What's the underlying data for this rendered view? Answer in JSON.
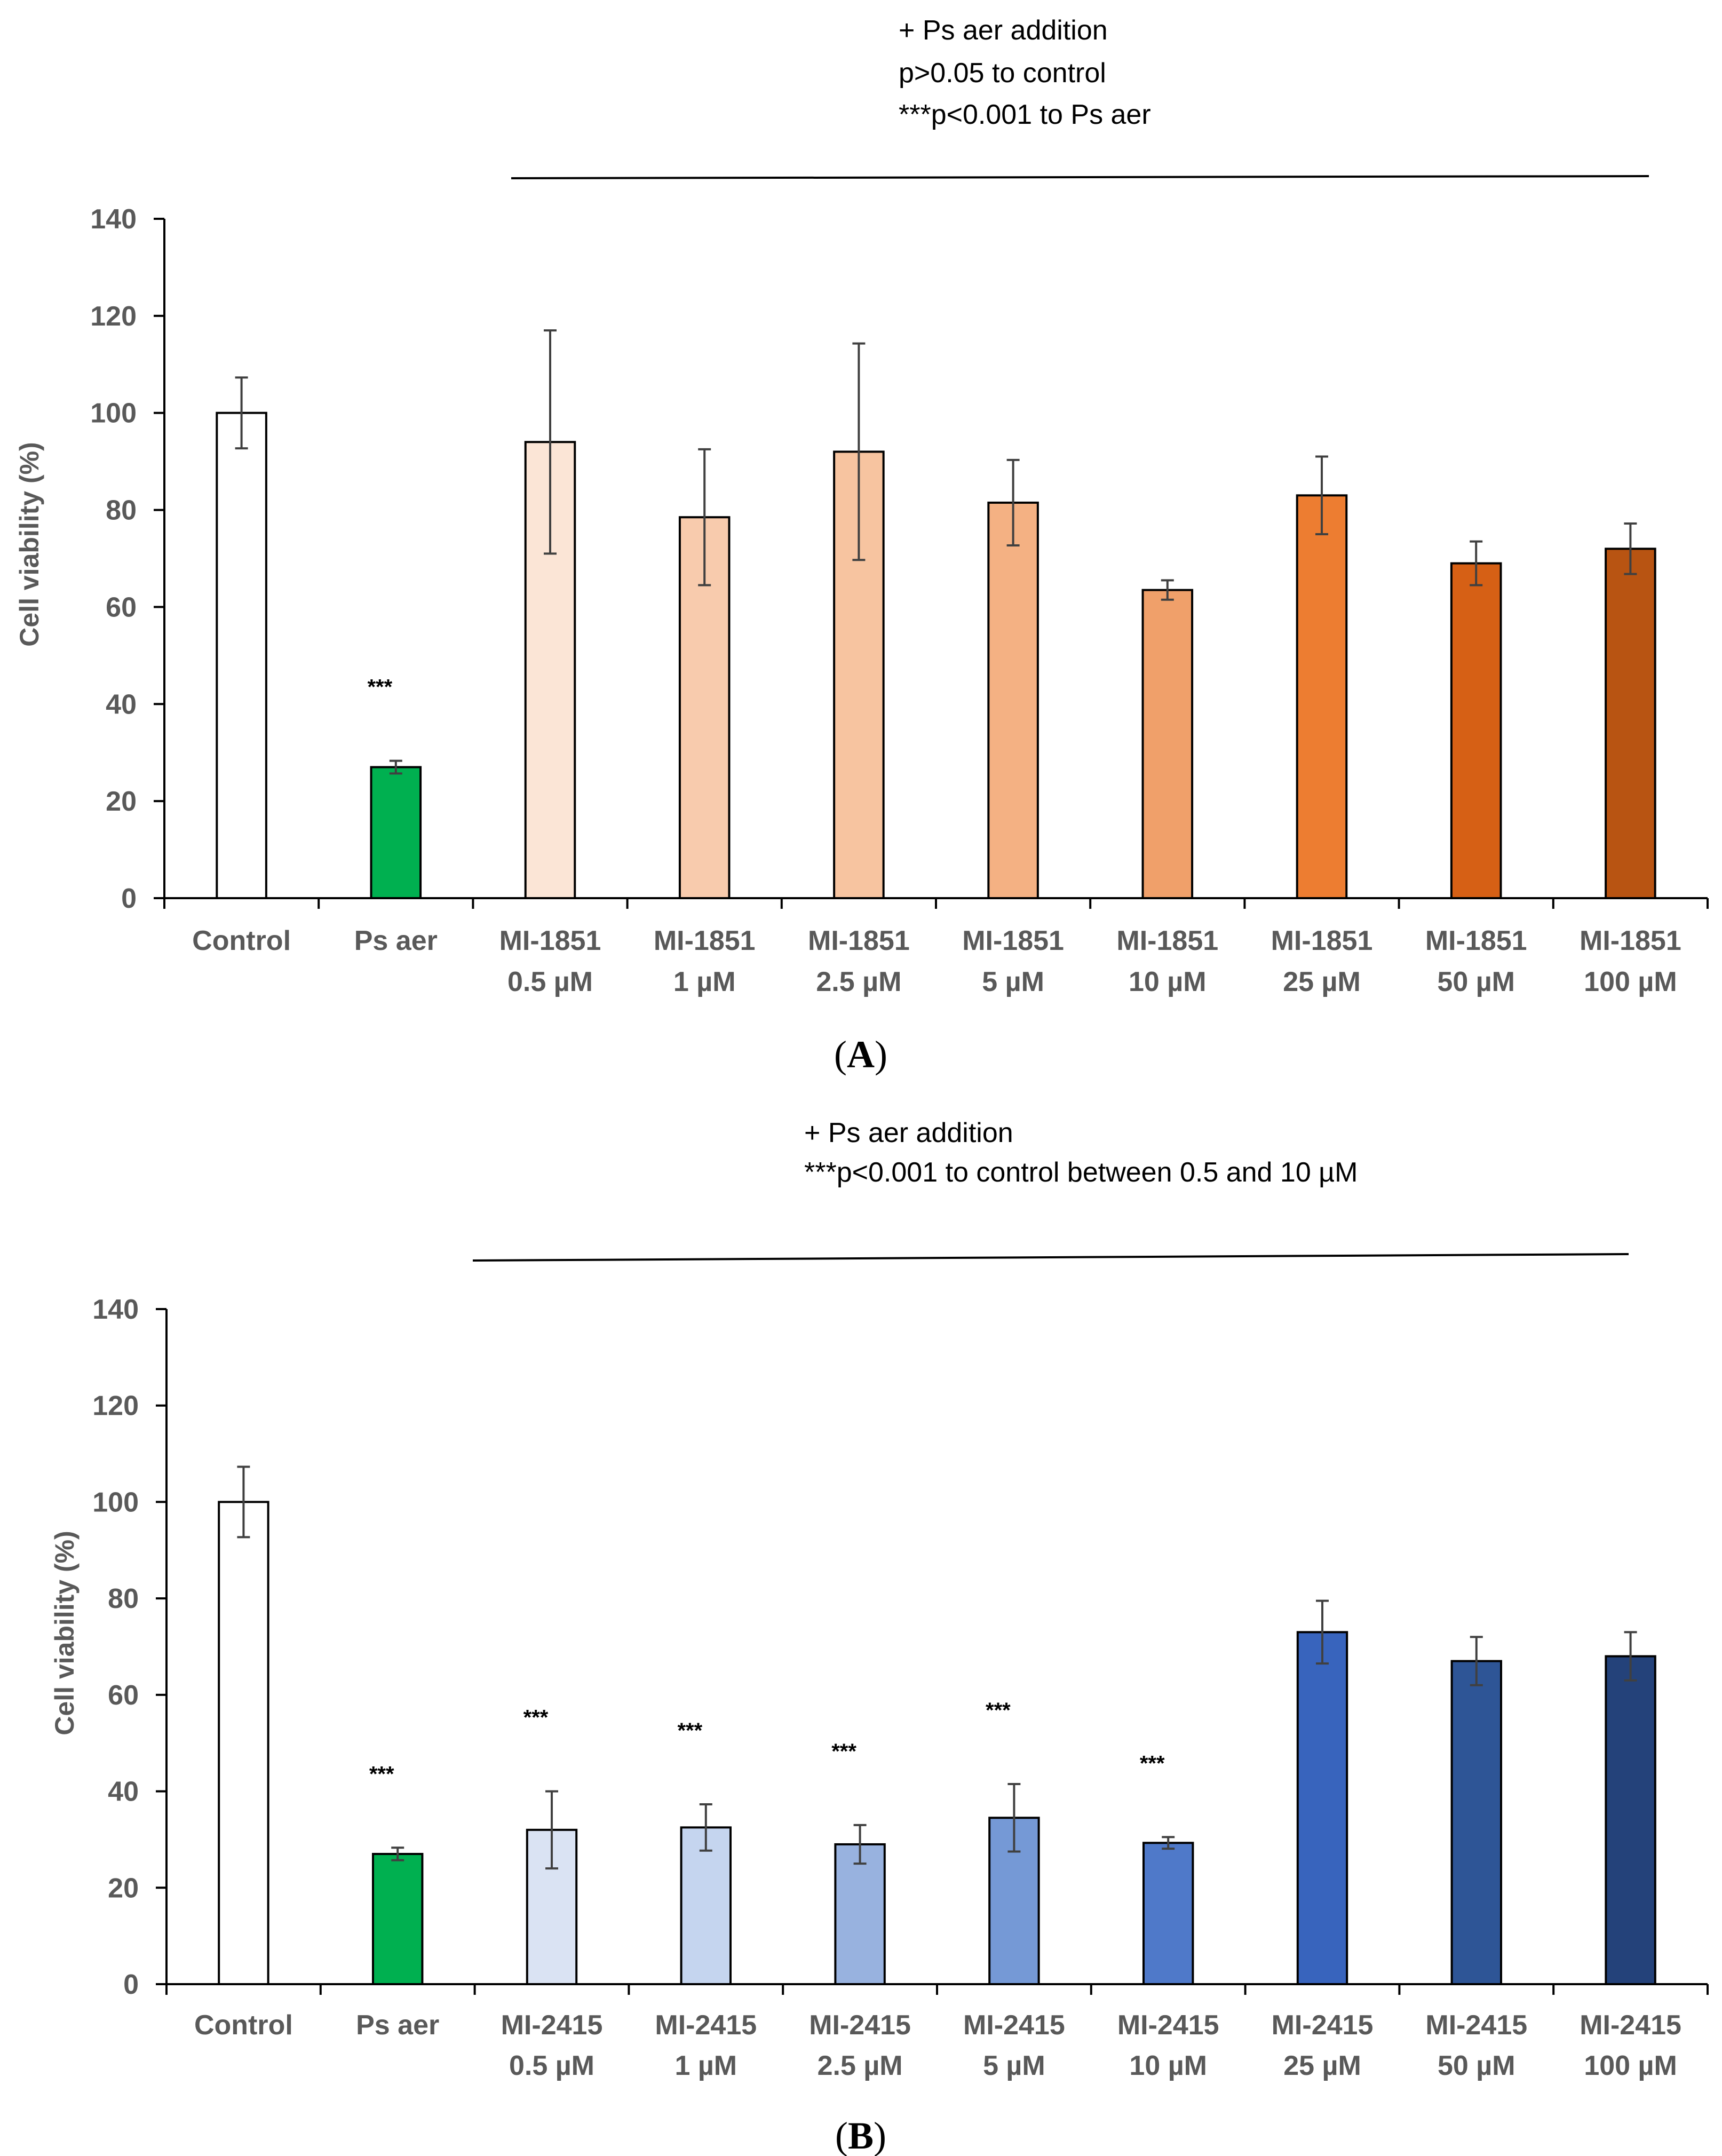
{
  "chart_data": [
    {
      "type": "bar",
      "panel": "A",
      "ylabel": "Cell viability (%)",
      "ylim": [
        0,
        140
      ],
      "yticks": [
        0,
        20,
        40,
        60,
        80,
        100,
        120,
        140
      ],
      "categories": [
        [
          "Control"
        ],
        [
          "Ps aer"
        ],
        [
          "MI-1851",
          "0.5 µM"
        ],
        [
          "MI-1851",
          "1 µM"
        ],
        [
          "MI-1851",
          "2.5 µM"
        ],
        [
          "MI-1851",
          "5 µM"
        ],
        [
          "MI-1851",
          "10 µM"
        ],
        [
          "MI-1851",
          "25 µM"
        ],
        [
          "MI-1851",
          "50 µM"
        ],
        [
          "MI-1851",
          "100 µM"
        ]
      ],
      "values": [
        100,
        27,
        94,
        78.5,
        92,
        81.5,
        63.5,
        83,
        69,
        72
      ],
      "errors": [
        7.3,
        1.3,
        23,
        14,
        22.3,
        8.8,
        2,
        8,
        4.5,
        5.2
      ],
      "colors": [
        "#ffffff",
        "#00b050",
        "#fbe5d6",
        "#f8cbad",
        "#f7c4a0",
        "#f4b183",
        "#f0a06a",
        "#ed7d31",
        "#d66015",
        "#b85412"
      ],
      "significance": [
        "",
        "***",
        "",
        "",
        "",
        "",
        "",
        "",
        "",
        ""
      ],
      "annotation": [
        "+ Ps aer addition",
        "p>0.05 to control",
        "***p<0.001 to Ps aer"
      ]
    },
    {
      "type": "bar",
      "panel": "B",
      "ylabel": "Cell viability (%)",
      "ylim": [
        0,
        140
      ],
      "yticks": [
        0,
        20,
        40,
        60,
        80,
        100,
        120,
        140
      ],
      "categories": [
        [
          "Control"
        ],
        [
          "Ps aer"
        ],
        [
          "MI-2415",
          "0.5 µM"
        ],
        [
          "MI-2415",
          "1 µM"
        ],
        [
          "MI-2415",
          "2.5 µM"
        ],
        [
          "MI-2415",
          "5 µM"
        ],
        [
          "MI-2415",
          "10 µM"
        ],
        [
          "MI-2415",
          "25 µM"
        ],
        [
          "MI-2415",
          "50 µM"
        ],
        [
          "MI-2415",
          "100 µM"
        ]
      ],
      "values": [
        100,
        27,
        32,
        32.5,
        29,
        34.5,
        29.3,
        73,
        67,
        68
      ],
      "errors": [
        7.3,
        1.3,
        8,
        4.8,
        4,
        7,
        1.2,
        6.5,
        5,
        5
      ],
      "colors": [
        "#ffffff",
        "#00b050",
        "#dae3f3",
        "#c5d5ef",
        "#98b2df",
        "#7599d6",
        "#4f79c9",
        "#3864bd",
        "#2e5596",
        "#24427a"
      ],
      "significance": [
        "",
        "***",
        "***",
        "***",
        "***",
        "***",
        "***",
        "",
        "",
        ""
      ],
      "annotation": [
        "+ Ps aer addition",
        "***p<0.001 to control between 0.5 and 10 µM"
      ]
    }
  ],
  "panel_labels": {
    "a": {
      "open": "(",
      "letter": "A",
      "close": ")"
    },
    "b": {
      "open": "(",
      "letter": "B",
      "close": ")"
    }
  }
}
